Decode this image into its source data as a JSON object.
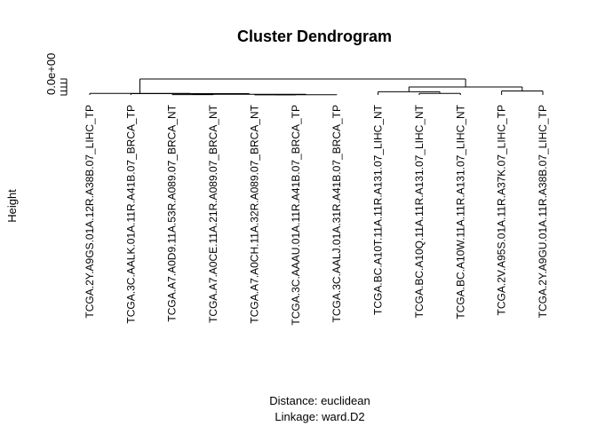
{
  "chart_data": {
    "type": "dendrogram",
    "title": "Cluster Dendrogram",
    "ylabel": "Height",
    "subtitle_lines": [
      "Distance: euclidean",
      "Linkage: ward.D2"
    ],
    "y_tick_labels": [
      "0.0e+00"
    ],
    "leaves": [
      "TCGA.2Y.A9GS.01A.12R.A38B.07_LIHC_TP",
      "TCGA.3C.AALK.01A.11R.A41B.07_BRCA_TP",
      "TCGA.A7.A0D9.11A.53R.A089.07_BRCA_NT",
      "TCGA.A7.A0CE.11A.21R.A089.07_BRCA_NT",
      "TCGA.A7.A0CH.11A.32R.A089.07_BRCA_NT",
      "TCGA.3C.AAAU.01A.11R.A41B.07_BRCA_TP",
      "TCGA.3C.AALJ.01A.31R.A41B.07_BRCA_TP",
      "TCGA.BC.A10T.11A.11R.A131.07_LIHC_NT",
      "TCGA.BC.A10Q.11A.11R.A131.07_LIHC_NT",
      "TCGA.BC.A10W.11A.11R.A131.07_LIHC_NT",
      "TCGA.2V.A95S.01A.11R.A37K.07_LIHC_TP",
      "TCGA.2Y.A9GU.01A.11R.A38B.07_LIHC_TP"
    ],
    "merges": [
      [
        -3,
        -4,
        0.02
      ],
      [
        -5,
        -6,
        0.01
      ],
      [
        -7,
        2,
        0.015
      ],
      [
        1,
        3,
        0.04
      ],
      [
        -2,
        4,
        0.08
      ],
      [
        -1,
        5,
        0.1
      ],
      [
        -9,
        -10,
        0.1
      ],
      [
        -8,
        7,
        0.2
      ],
      [
        -11,
        -12,
        0.25
      ],
      [
        8,
        9,
        0.5
      ],
      [
        6,
        10,
        1.0
      ]
    ]
  }
}
